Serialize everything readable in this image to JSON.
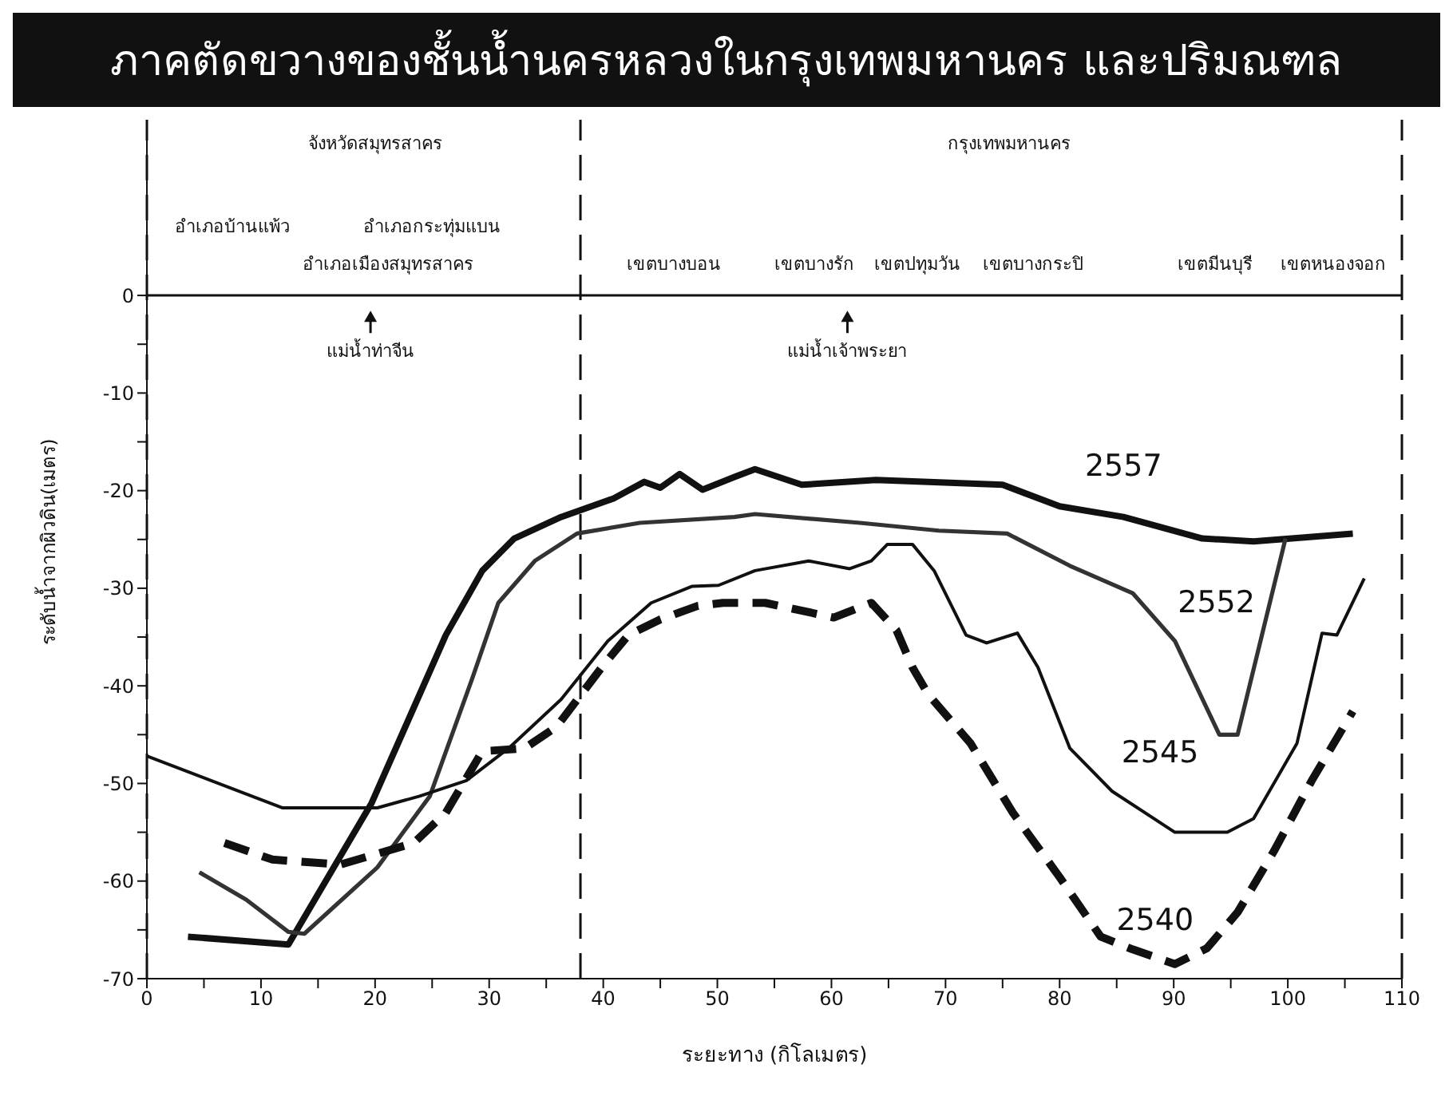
{
  "chart_data": {
    "type": "line",
    "title": "ภาคตัดขวางของชั้นน้ำนครหลวงในกรุงเทพมหานคร และปริมณฑล",
    "xlabel": "ระยะทาง (กิโลเมตร)",
    "ylabel": "ระดับน้ำจากผิวดิน(เมตร)",
    "xlim": [
      0,
      110
    ],
    "ylim": [
      -70,
      18
    ],
    "xticks": [
      0,
      {
        "value": 5,
        "label": null
      },
      10,
      {
        "value": 15,
        "label": null
      },
      20,
      {
        "value": 25,
        "label": null
      },
      30,
      {
        "value": 35,
        "label": null
      },
      40,
      {
        "value": 45,
        "label": null
      },
      50,
      {
        "value": 55,
        "label": null
      },
      60,
      {
        "value": 65,
        "label": null
      },
      70,
      {
        "value": 75,
        "label": null
      },
      80,
      {
        "value": 85,
        "label": null
      },
      90,
      {
        "value": 95,
        "label": null
      },
      100,
      {
        "value": 105,
        "label": null
      },
      110
    ],
    "yticks": [
      -70,
      {
        "value": -65,
        "label": null
      },
      -60,
      {
        "value": -55,
        "label": null
      },
      -50,
      {
        "value": -45,
        "label": null
      },
      -40,
      {
        "value": -35,
        "label": null
      },
      -30,
      {
        "value": -25,
        "label": null
      },
      -20,
      {
        "value": -15,
        "label": null
      },
      -10,
      {
        "value": -5,
        "label": null
      },
      0
    ],
    "marker": "none",
    "series": [
      {
        "name": "2557",
        "color": "#111111",
        "line_style": "solid",
        "x": [
          3.6,
          12.4,
          19.7,
          26.2,
          29.4,
          32.2,
          36.3,
          40.9,
          43.6,
          45,
          46.7,
          48.7,
          51.5,
          53.3,
          57.4,
          63.9,
          75,
          80,
          85.6,
          92.5,
          97,
          105.7
        ],
        "values": [
          -65.7,
          -66.5,
          -52,
          -34.8,
          -28.2,
          -24.9,
          -22.7,
          -20.8,
          -19.1,
          -19.7,
          -18.3,
          -19.9,
          -18.6,
          -17.8,
          -19.4,
          -18.9,
          -19.4,
          -21.6,
          -22.7,
          -24.9,
          -25.2,
          -24.4
        ]
      },
      {
        "name": "2552",
        "color": "#333333",
        "line_style": "solid",
        "x": [
          4.6,
          8.7,
          12.4,
          13.8,
          20.2,
          24.8,
          28.5,
          30.8,
          34,
          37.7,
          43.2,
          51.5,
          53.3,
          62.5,
          69.4,
          75.4,
          80.9,
          86.4,
          90.1,
          94,
          95.6,
          99.8
        ],
        "values": [
          -59.1,
          -61.9,
          -65.2,
          -65.4,
          -58.6,
          -51.3,
          -39.3,
          -31.5,
          -27.2,
          -24.4,
          -23.3,
          -22.7,
          -22.4,
          -23.3,
          -24.1,
          -24.4,
          -27.7,
          -30.5,
          -35.4,
          -45,
          -45,
          -24.9
        ]
      },
      {
        "name": "2545",
        "color": "#111111",
        "line_style": "solid",
        "x": [
          0,
          11.9,
          20.2,
          23.9,
          28,
          31.7,
          36.3,
          40.4,
          44.2,
          47.8,
          50.1,
          53.3,
          58,
          61.6,
          63.5,
          64.9,
          67.1,
          69,
          71.8,
          73.6,
          76.3,
          78.1,
          80.9,
          84.6,
          90.1,
          94.7,
          97,
          100.8,
          103,
          104.3,
          106.7
        ],
        "values": [
          -47.2,
          -52.5,
          -52.5,
          -51.3,
          -49.7,
          -46.4,
          -41.4,
          -35.4,
          -31.5,
          -29.8,
          -29.7,
          -28.2,
          -27.2,
          -28,
          -27.2,
          -25.5,
          -25.5,
          -28.2,
          -34.8,
          -35.6,
          -34.6,
          -38.1,
          -46.4,
          -50.8,
          -55,
          -55,
          -53.6,
          -45.9,
          -34.6,
          -34.8,
          -29
        ]
      },
      {
        "name": "2540",
        "color": "#111111",
        "line_style": "dashed",
        "x": [
          6.8,
          11,
          17,
          23.4,
          26.2,
          29.4,
          33.1,
          35.9,
          40,
          42.2,
          45,
          48.3,
          50.5,
          54.2,
          60.2,
          63.5,
          65.7,
          67.1,
          68.5,
          72.2,
          75.9,
          80,
          83.6,
          86.4,
          90.1,
          92.9,
          95.6,
          98.8,
          102.1,
          105.7
        ],
        "values": [
          -56.1,
          -57.8,
          -58.3,
          -56.1,
          -53,
          -46.7,
          -46.4,
          -44.2,
          -37.9,
          -34.8,
          -33.2,
          -31.8,
          -31.5,
          -31.5,
          -33,
          -31.5,
          -34.3,
          -38.1,
          -40.9,
          -45.9,
          -53,
          -59.6,
          -65.7,
          -67,
          -68.5,
          -66.9,
          -63.2,
          -56.9,
          -49.7,
          -42.6
        ]
      }
    ],
    "ref_lines": [
      {
        "axis": "y",
        "value": 0,
        "label": null,
        "color": "#111111",
        "line_style": "solid"
      },
      {
        "axis": "x",
        "value": 0,
        "label": null,
        "color": "#111111",
        "line_style": "dashed"
      },
      {
        "axis": "x",
        "value": 38,
        "label": null,
        "color": "#111111",
        "line_style": "dashed"
      },
      {
        "axis": "x",
        "value": 110,
        "label": null,
        "color": "#111111",
        "line_style": "dashed"
      }
    ],
    "annotations": [
      "จังหวัดสมุทรสาคร",
      "กรุงเทพมหานคร",
      "อำเภอบ้านแพ้ว",
      "อำเภอกระทุ่มแบน",
      "อำเภอเมืองสมุทรสาคร",
      "เขตบางบอน",
      "เขตบางรัก",
      "เขตปทุมวัน",
      "เขตบางกระปิ",
      "เขตมีนบุรี",
      "เขตหนองจอก",
      "แม่น้ำท่าจีน",
      "แม่น้ำเจ้าพระยา"
    ]
  }
}
